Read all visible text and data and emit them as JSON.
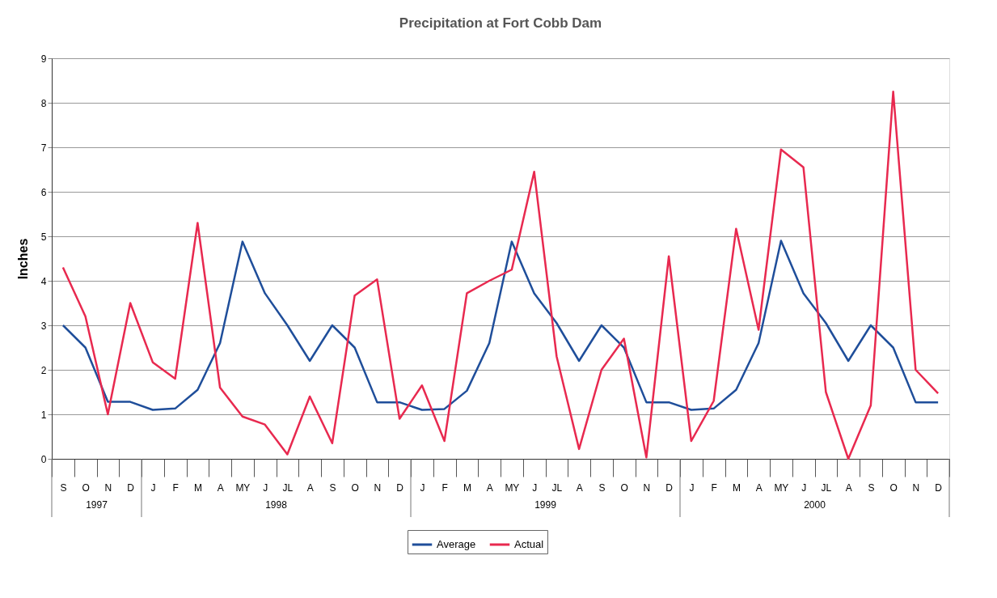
{
  "chart_data": {
    "type": "line",
    "title": "Precipitation at Fort Cobb Dam",
    "ylabel": "Inches",
    "categories": [
      "S",
      "O",
      "N",
      "D",
      "J",
      "F",
      "M",
      "A",
      "MY",
      "J",
      "JL",
      "A",
      "S",
      "O",
      "N",
      "D",
      "J",
      "F",
      "M",
      "A",
      "MY",
      "J",
      "JL",
      "A",
      "S",
      "O",
      "N",
      "D",
      "J",
      "F",
      "M",
      "A",
      "MY",
      "J",
      "JL",
      "A",
      "S",
      "O",
      "N",
      "D"
    ],
    "series": [
      {
        "name": "Average",
        "color": "#1f4e9a",
        "values": [
          3.0,
          2.5,
          1.28,
          1.28,
          1.1,
          1.13,
          1.55,
          2.6,
          4.88,
          3.72,
          3.0,
          2.2,
          3.0,
          2.5,
          1.27,
          1.27,
          1.1,
          1.12,
          1.53,
          2.6,
          4.88,
          3.72,
          3.05,
          2.2,
          3.0,
          2.5,
          1.27,
          1.27,
          1.1,
          1.13,
          1.55,
          2.6,
          4.9,
          3.72,
          3.05,
          2.2,
          3.0,
          2.5,
          1.27,
          1.27
        ]
      },
      {
        "name": "Actual",
        "color": "#e8294f",
        "values": [
          4.3,
          3.2,
          1.0,
          3.5,
          2.17,
          1.8,
          5.3,
          1.6,
          0.95,
          0.77,
          0.1,
          1.4,
          0.35,
          3.67,
          4.03,
          0.9,
          1.65,
          0.4,
          3.72,
          4.0,
          4.25,
          6.45,
          2.3,
          0.22,
          2.0,
          2.7,
          0.03,
          4.55,
          0.4,
          1.3,
          5.17,
          2.9,
          6.95,
          6.55,
          1.5,
          0.0,
          1.2,
          8.25,
          2.0,
          1.47
        ]
      }
    ],
    "ylim": [
      0,
      9
    ],
    "yticks": [
      0,
      1,
      2,
      3,
      4,
      5,
      6,
      7,
      8,
      9
    ],
    "grid": "y",
    "legend": "bottom",
    "annotations": [
      "1997",
      "1998",
      "1999",
      "2000"
    ]
  }
}
